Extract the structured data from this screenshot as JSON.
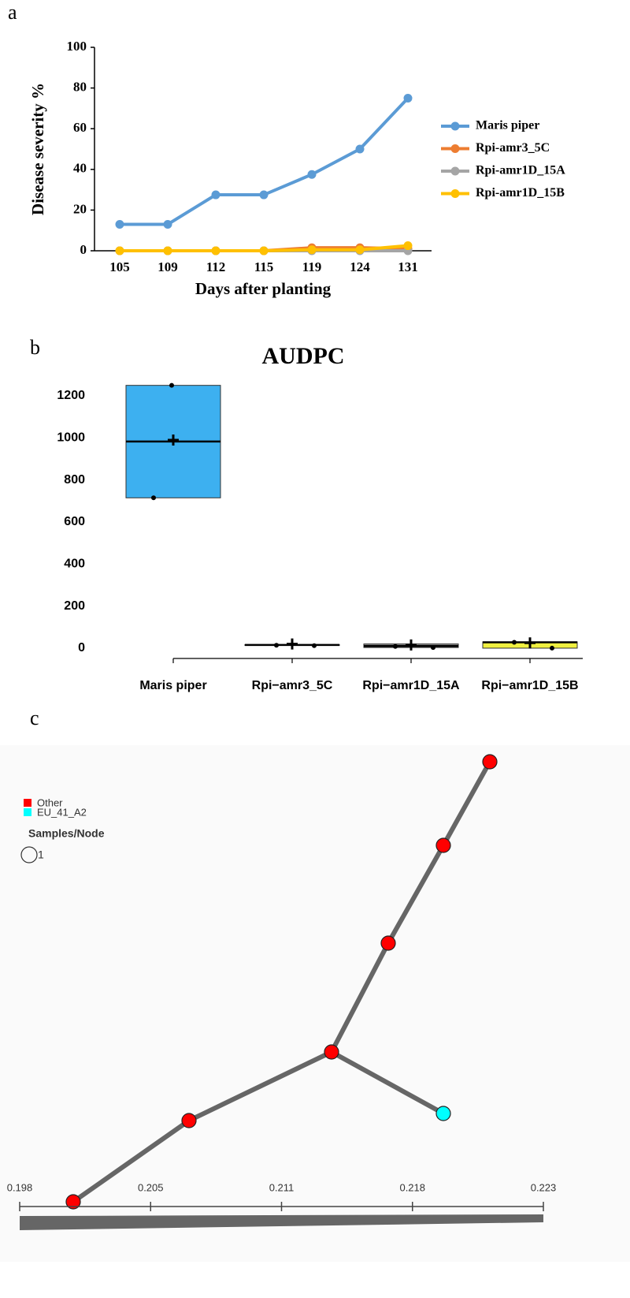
{
  "panel_labels": [
    "a",
    "b",
    "c"
  ],
  "chart_data": [
    {
      "type": "line",
      "y_label": "Disease severity %",
      "x_label": "Days after planting",
      "categories": [
        "105",
        "109",
        "112",
        "115",
        "119",
        "124",
        "131"
      ],
      "series": [
        {
          "name": "Maris piper",
          "color": "#5b9bd5",
          "values": [
            13,
            13,
            27.5,
            27.5,
            37.5,
            50,
            75
          ]
        },
        {
          "name": "Rpi-amr3_5C",
          "color": "#ed7d31",
          "values": [
            0,
            0,
            0,
            0,
            1.5,
            1.5,
            1
          ]
        },
        {
          "name": "Rpi-amr1D_15A",
          "color": "#a5a5a5",
          "values": [
            0,
            0,
            0,
            0,
            0,
            0,
            0
          ]
        },
        {
          "name": "Rpi-amr1D_15B",
          "color": "#ffc000",
          "values": [
            0,
            0,
            0,
            0,
            0.5,
            0.5,
            2.5
          ]
        }
      ],
      "ylim": [
        0,
        100
      ],
      "yticks": [
        0,
        20,
        40,
        60,
        80,
        100
      ],
      "legend": "right"
    },
    {
      "type": "box",
      "title": "AUDPC",
      "categories": [
        "Maris piper",
        "Rpi−amr3_5C",
        "Rpi−amr1D_15A",
        "Rpi−amr1D_15B"
      ],
      "boxes": [
        {
          "color": "#3db0f0",
          "q1": 715,
          "median": 983,
          "q3": 1250,
          "mean": 990,
          "points": [
            1250,
            715
          ]
        },
        {
          "color": "#000000",
          "q1": 13,
          "median": 15,
          "q3": 17,
          "mean": 20,
          "points": [
            12,
            14
          ]
        },
        {
          "color": "#8c8c8c",
          "q1": 3,
          "median": 10,
          "q3": 20,
          "mean": 15,
          "points": [
            3,
            8
          ]
        },
        {
          "color": "#f0f040",
          "q1": 0,
          "median": 28,
          "q3": 30,
          "mean": 25,
          "points": [
            0,
            28
          ]
        }
      ],
      "ylim": [
        -49,
        1260
      ],
      "yticks": [
        0,
        200,
        400,
        600,
        800,
        1000,
        1200
      ]
    }
  ],
  "network": {
    "legend": [
      {
        "label": "Other",
        "color": "#ff0000"
      },
      {
        "label": "EU_41_A2",
        "color": "#00ffff"
      }
    ],
    "size_legend": {
      "title": "Samples/Node",
      "label": "1"
    },
    "scale_labels": [
      "0.198",
      "0.205",
      "0.211",
      "0.218",
      "0.223"
    ]
  }
}
